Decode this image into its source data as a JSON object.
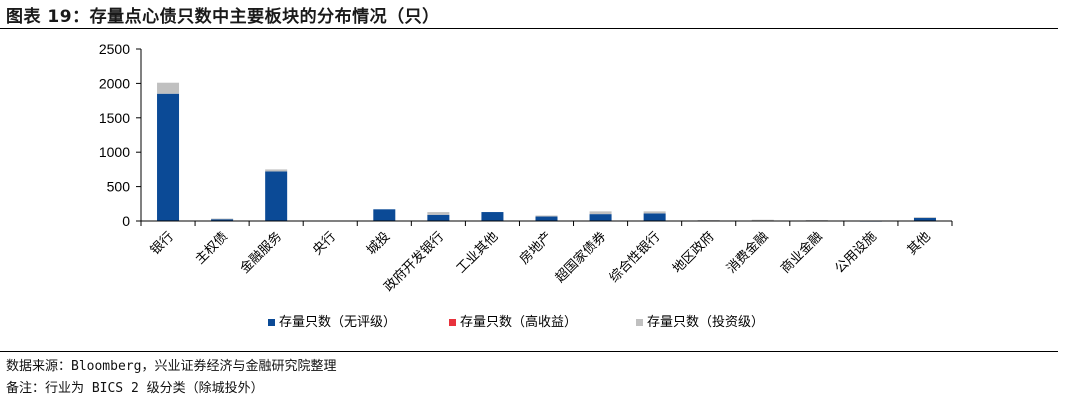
{
  "header": {
    "title": "图表 19：存量点心债只数中主要板块的分布情况（只）"
  },
  "footer": {
    "source": "数据来源：Bloomberg，兴业证券经济与金融研究院整理",
    "note": "备注：行业为 BICS 2 级分类（除城投外）"
  },
  "chart_data": {
    "type": "bar",
    "stacked": true,
    "title": "图表 19：存量点心债只数中主要板块的分布情况（只）",
    "categories": [
      "银行",
      "主权债",
      "金融服务",
      "央行",
      "城投",
      "政府开发银行",
      "工业其他",
      "房地产",
      "超国家债券",
      "综合性银行",
      "地区政府",
      "消费金融",
      "商业金融",
      "公用设施",
      "其他"
    ],
    "series": [
      {
        "name": "存量只数（无评级）",
        "color": "#0b4a96",
        "values": [
          1850,
          30,
          720,
          0,
          170,
          90,
          130,
          65,
          100,
          110,
          8,
          8,
          8,
          3,
          50
        ]
      },
      {
        "name": "存量只数（高收益）",
        "color": "#e8323c",
        "values": [
          0,
          0,
          0,
          0,
          0,
          0,
          0,
          0,
          0,
          0,
          0,
          0,
          0,
          0,
          0
        ]
      },
      {
        "name": "存量只数（投资级）",
        "color": "#c0c0c0",
        "values": [
          160,
          5,
          30,
          0,
          0,
          40,
          0,
          15,
          40,
          30,
          5,
          10,
          5,
          2,
          5
        ]
      }
    ],
    "yticks": [
      0,
      500,
      1000,
      1500,
      2000,
      2500
    ],
    "ylim": [
      0,
      2500
    ],
    "legend_position": "bottom"
  }
}
